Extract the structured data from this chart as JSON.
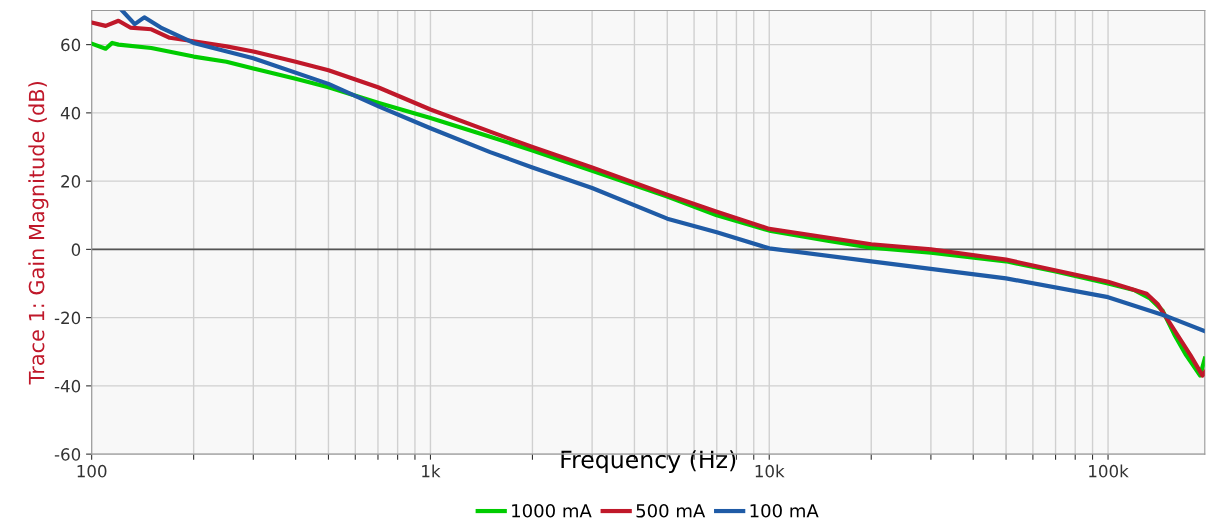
{
  "chart_data": {
    "type": "line",
    "xlabel": "Frequency (Hz)",
    "ylabel": "Trace 1: Gain Magnitude (dB)",
    "log": "x",
    "grid": true,
    "legend": "bottom",
    "line_style": "solid",
    "marker": "none",
    "xlim": [
      100,
      193000
    ],
    "ylim": [
      -60,
      70
    ],
    "xticks": [
      {
        "value": 100,
        "label": "100"
      },
      {
        "value": 200,
        "label": null
      },
      {
        "value": 300,
        "label": null
      },
      {
        "value": 400,
        "label": null
      },
      {
        "value": 500,
        "label": null
      },
      {
        "value": 600,
        "label": null
      },
      {
        "value": 700,
        "label": null
      },
      {
        "value": 800,
        "label": null
      },
      {
        "value": 900,
        "label": null
      },
      {
        "value": 1000,
        "label": "1k"
      },
      {
        "value": 2000,
        "label": null
      },
      {
        "value": 3000,
        "label": null
      },
      {
        "value": 4000,
        "label": null
      },
      {
        "value": 5000,
        "label": null
      },
      {
        "value": 6000,
        "label": null
      },
      {
        "value": 7000,
        "label": null
      },
      {
        "value": 8000,
        "label": null
      },
      {
        "value": 9000,
        "label": null
      },
      {
        "value": 10000,
        "label": "10k"
      },
      {
        "value": 20000,
        "label": null
      },
      {
        "value": 30000,
        "label": null
      },
      {
        "value": 40000,
        "label": null
      },
      {
        "value": 50000,
        "label": null
      },
      {
        "value": 60000,
        "label": null
      },
      {
        "value": 70000,
        "label": null
      },
      {
        "value": 80000,
        "label": null
      },
      {
        "value": 90000,
        "label": null
      },
      {
        "value": 100000,
        "label": "100k"
      }
    ],
    "yticks": [
      -60,
      -40,
      -20,
      0,
      20,
      40,
      60
    ],
    "ref_lines": [
      {
        "axis": "y",
        "value": 0,
        "color": "#555555"
      }
    ],
    "series": [
      {
        "name": "1000 mA",
        "color": "#00cc00",
        "x": [
          100,
          110,
          115,
          120,
          150,
          200,
          250,
          300,
          400,
          500,
          700,
          1000,
          1500,
          2000,
          3000,
          5000,
          7000,
          10000,
          15000,
          20000,
          30000,
          50000,
          70000,
          100000,
          120000,
          133000,
          145000,
          157000,
          170000,
          187000,
          193000
        ],
        "values": [
          60.3,
          58.8,
          60.5,
          60,
          59,
          56.5,
          55,
          53,
          50,
          47.5,
          43,
          38.5,
          33,
          29,
          23,
          15.5,
          10,
          5.5,
          2.5,
          0.5,
          -1,
          -3.5,
          -6.5,
          -10,
          -12,
          -14.4,
          -18,
          -25,
          -31,
          -37,
          -32
        ]
      },
      {
        "name": "500 mA",
        "color": "#c0182a",
        "x": [
          100,
          110,
          120,
          130,
          150,
          170,
          200,
          250,
          300,
          400,
          500,
          700,
          1000,
          1500,
          2000,
          3000,
          5000,
          7000,
          10000,
          20000,
          30000,
          50000,
          100000,
          130000,
          140000,
          160000,
          175000,
          190000,
          193000
        ],
        "values": [
          66.5,
          65.5,
          67,
          65,
          64.5,
          62,
          61,
          59.5,
          58,
          55,
          52.5,
          47.5,
          41,
          34.5,
          30,
          24,
          16,
          11,
          6,
          1.5,
          0,
          -3,
          -9.5,
          -13,
          -16,
          -25,
          -31,
          -37,
          -36
        ]
      },
      {
        "name": "100 mA",
        "color": "#1f5ba6",
        "x": [
          123,
          134,
          143,
          160,
          200,
          300,
          500,
          700,
          1000,
          1500,
          2000,
          3000,
          5000,
          7000,
          10000,
          20000,
          50000,
          100000,
          150000,
          193000
        ],
        "values": [
          70,
          66,
          68,
          65,
          60.5,
          56,
          48.5,
          42,
          35.5,
          28.5,
          24,
          18,
          9,
          5,
          0.3,
          -3.5,
          -8.5,
          -14,
          -19.7,
          -24
        ]
      }
    ]
  }
}
